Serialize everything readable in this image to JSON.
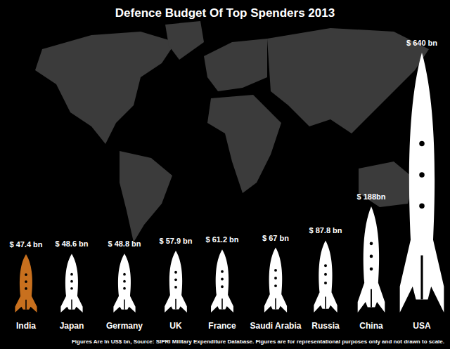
{
  "chart_data": {
    "type": "bar",
    "title": "Defence Budget Of Top Spenders 2013",
    "annotations": [
      "Figures Are In US$ bn, Source: SIPRI Military Expenditure Database. Figures are for representational purposes only and not drawn to scale."
    ],
    "categories": [
      "India",
      "Japan",
      "Germany",
      "UK",
      "France",
      "Saudi Arabia",
      "Russia",
      "China",
      "USA"
    ],
    "values": [
      47.4,
      48.6,
      48.8,
      57.9,
      61.2,
      67,
      87.8,
      188,
      640
    ],
    "value_labels": [
      "$ 47.4 bn",
      "$ 48.6 bn",
      "$ 48.8 bn",
      "$ 57.9 bn",
      "$ 61.2 bn",
      "$ 67 bn",
      "$ 87.8 bn",
      "$ 188bn",
      "$ 640 bn"
    ],
    "colors": [
      "#c8701e",
      "#ffffff",
      "#ffffff",
      "#ffffff",
      "#ffffff",
      "#ffffff",
      "#ffffff",
      "#ffffff",
      "#ffffff"
    ],
    "data_labels": true,
    "tick_labels": "x"
  }
}
